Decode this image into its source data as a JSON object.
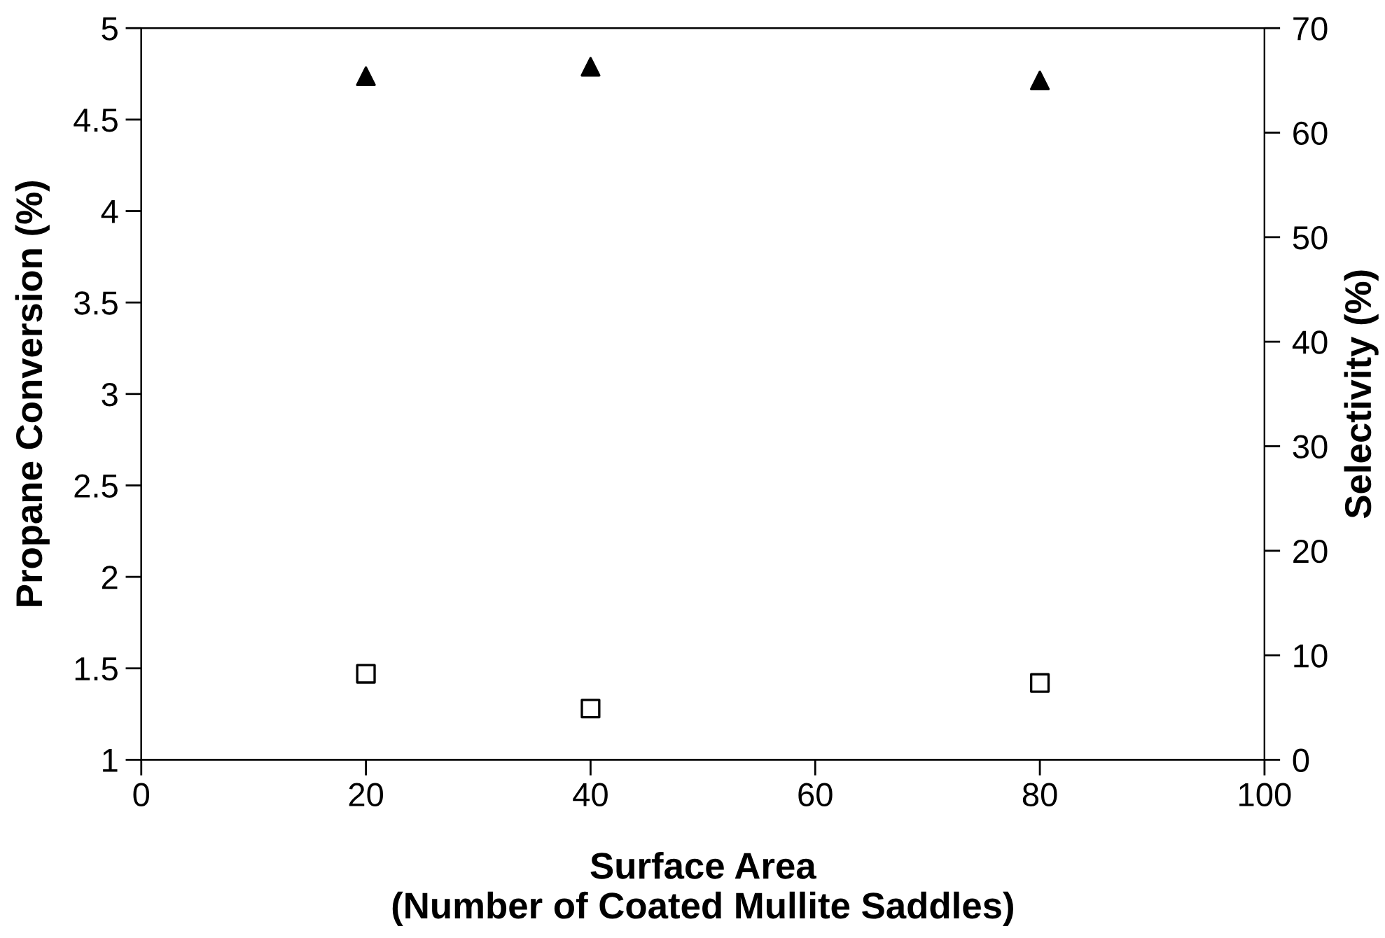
{
  "chart_data": {
    "type": "scatter",
    "xlabel": "Surface Area\n(Number of Coated Mullite Saddles)",
    "ylabel": "Propane Conversion (%)",
    "y2label": "Selectivity (%)",
    "x": [
      20,
      40,
      80
    ],
    "series": [
      {
        "color": "#000000",
        "marker": "square",
        "values": [
          1.47,
          1.28,
          1.42
        ]
      },
      {
        "color": "#000000",
        "marker": "triangle",
        "axis": "y2",
        "values": [
          65.4,
          66.3,
          65.0
        ]
      }
    ],
    "xlim": [
      0,
      100
    ],
    "xticks": [
      0,
      20,
      40,
      60,
      80,
      100
    ],
    "ylim": [
      1,
      5
    ],
    "yticks": [
      1,
      1.5,
      2,
      2.5,
      3,
      3.5,
      4,
      4.5,
      5
    ],
    "y2lim": [
      0,
      70
    ],
    "y2ticks": [
      0,
      10,
      20,
      30,
      40,
      50,
      60,
      70
    ],
    "grid": false,
    "legend": false
  }
}
